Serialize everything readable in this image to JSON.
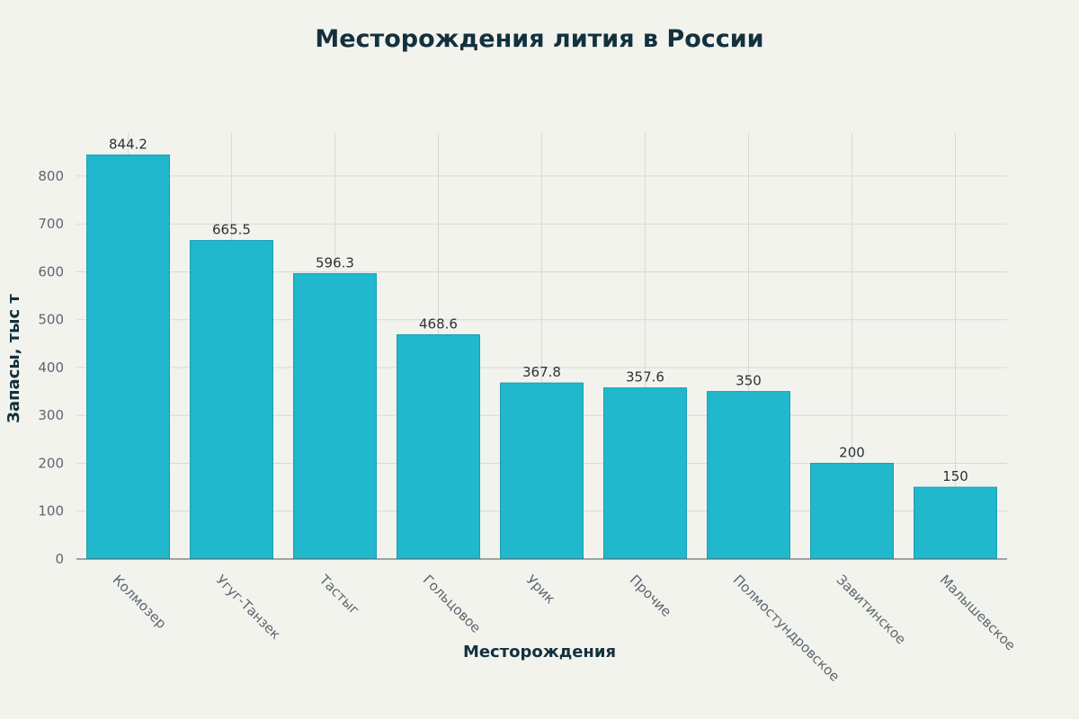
{
  "chart_data": {
    "type": "bar",
    "title": "Месторождения лития в России",
    "xlabel": "Месторождения",
    "ylabel": "Запасы, тыс т",
    "categories": [
      "Колмозер",
      "Угуг-Танзек",
      "Тастыг",
      "Гольцовое",
      "Урик",
      "Прочие",
      "Полмостундровское",
      "Завитинское",
      "Малышевское"
    ],
    "values": [
      844.2,
      665.5,
      596.3,
      468.6,
      367.8,
      357.6,
      350,
      200,
      150
    ],
    "data_labels": [
      "844.2",
      "665.5",
      "596.3",
      "468.6",
      "367.8",
      "357.6",
      "350",
      "200",
      "150"
    ],
    "yticks": [
      0,
      100,
      200,
      300,
      400,
      500,
      600,
      700,
      800
    ],
    "ylim": [
      0,
      890
    ],
    "grid": true,
    "legend": "none",
    "bar_color": "#21b7cc"
  }
}
